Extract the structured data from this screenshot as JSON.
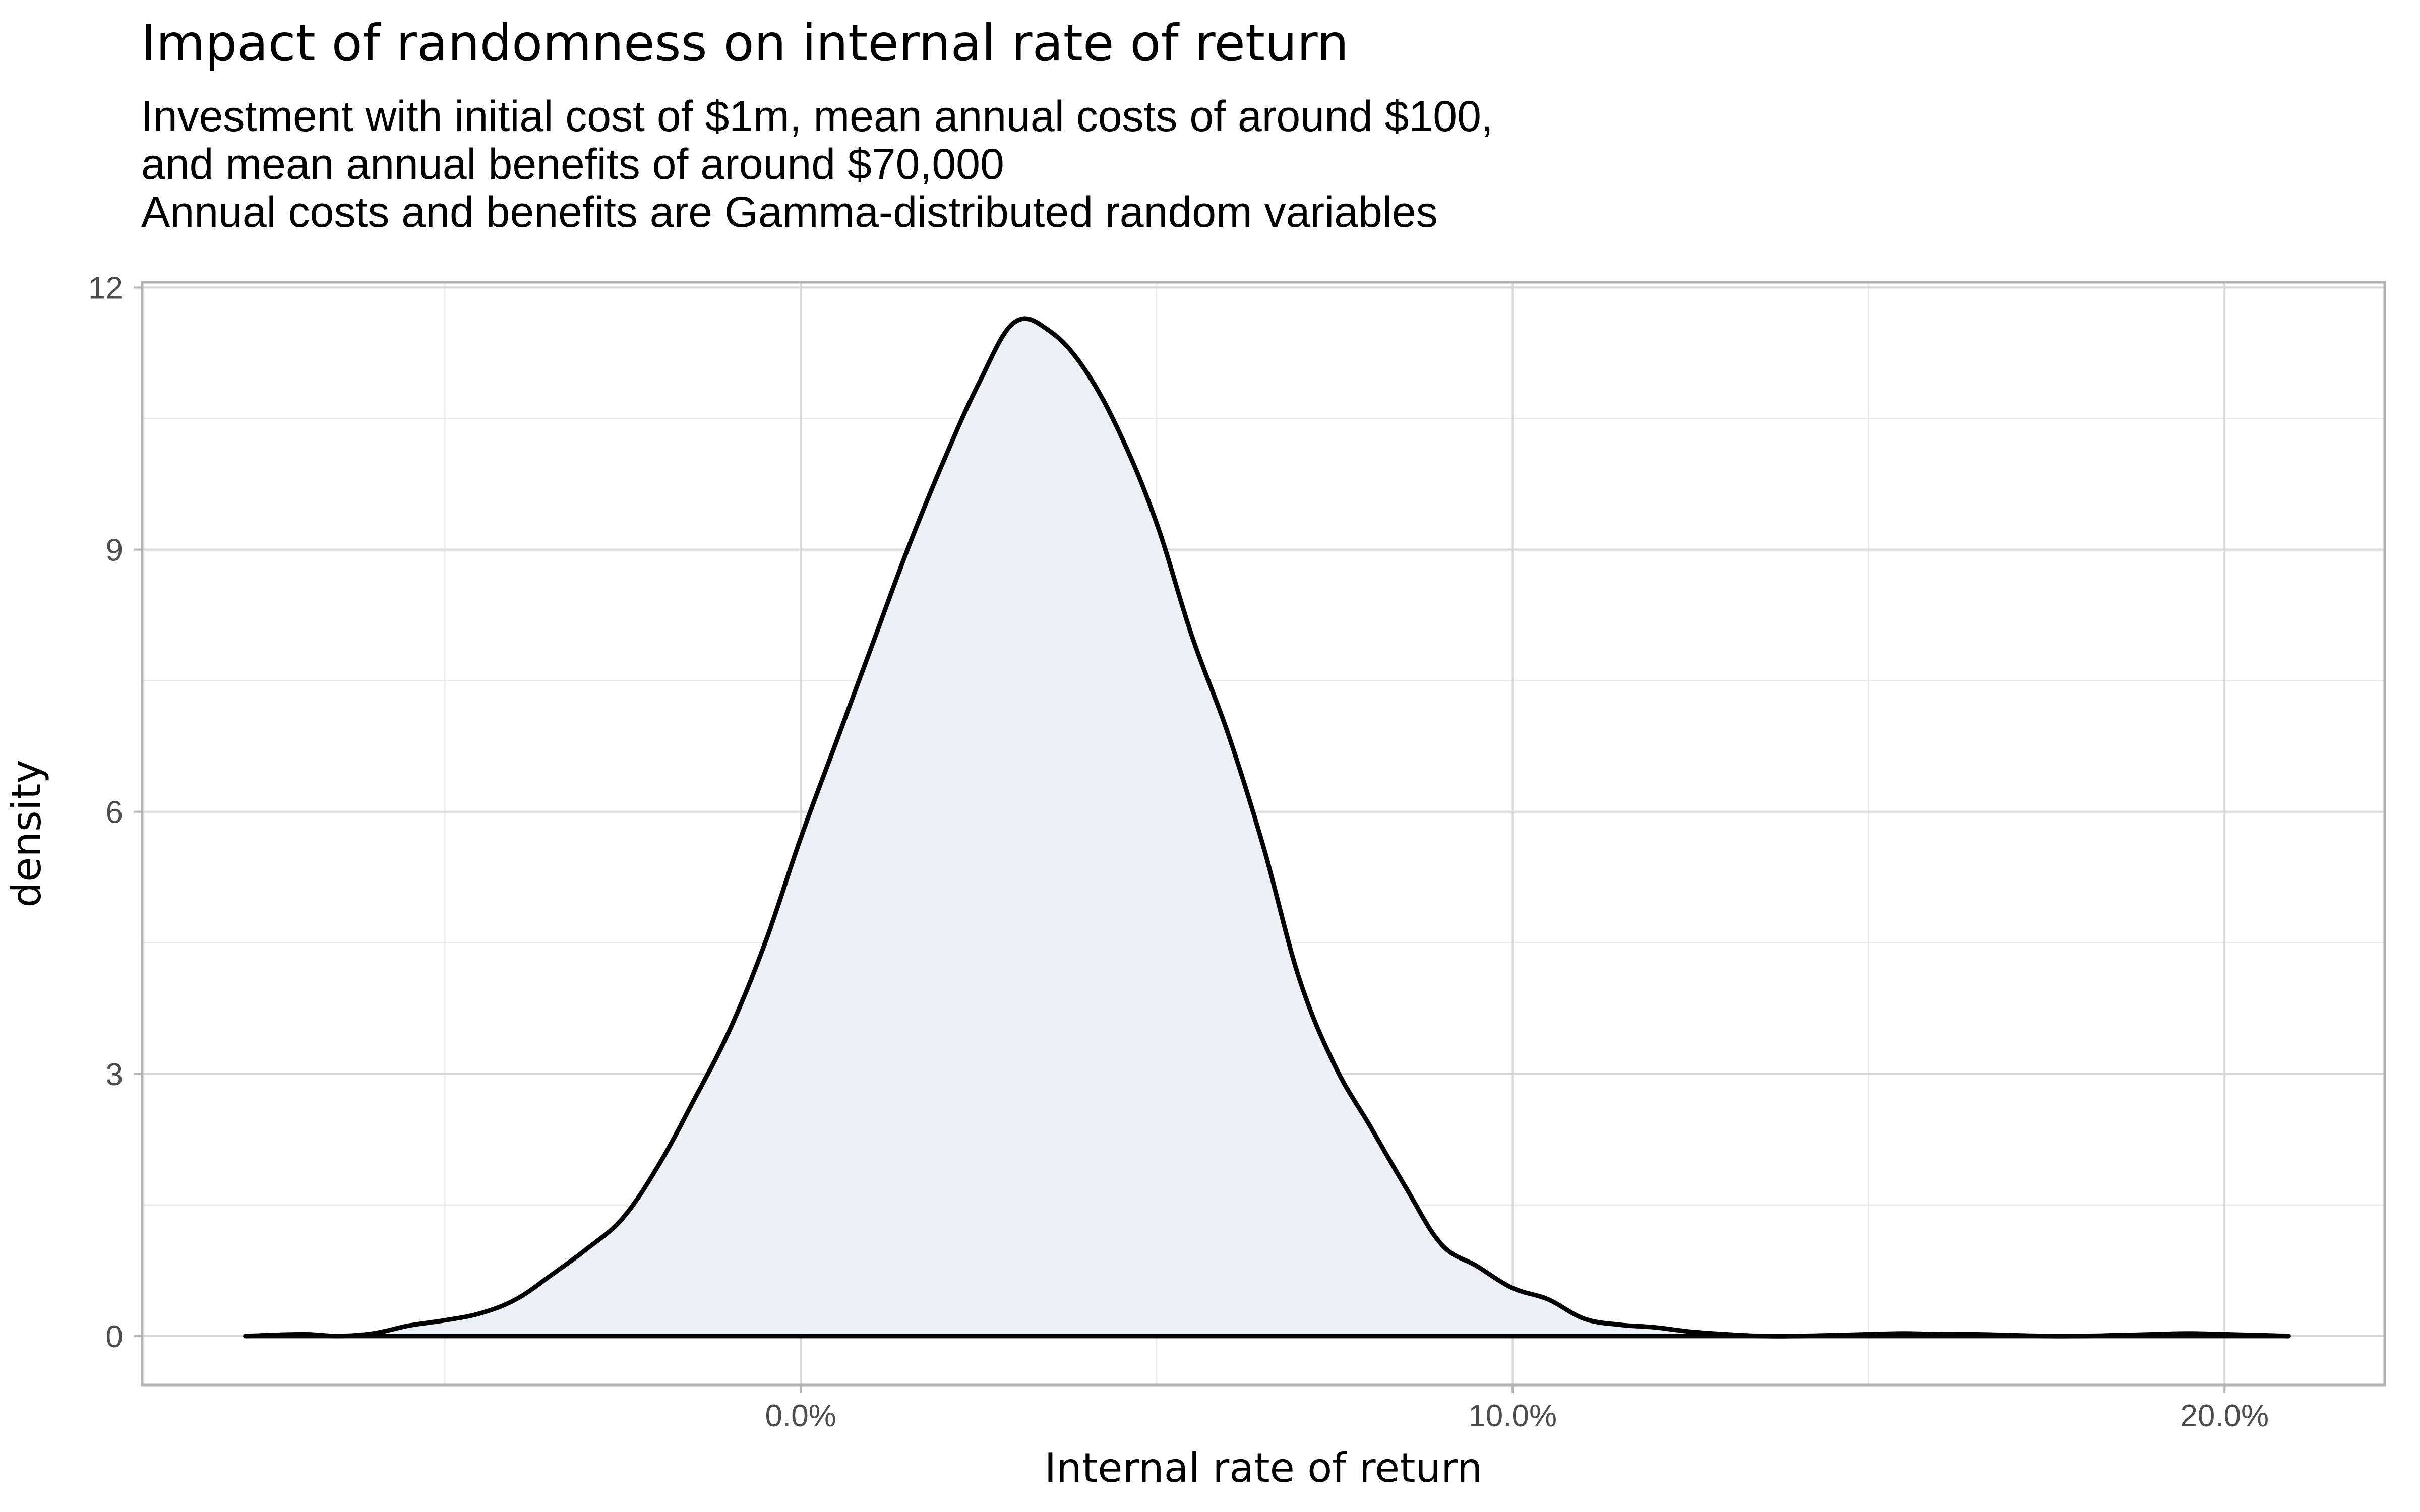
{
  "chart_data": {
    "type": "area",
    "title": "Impact of randomness on internal rate of return",
    "subtitle_lines": [
      "Investment with initial cost of $1m, mean annual costs of around $100,",
      "and mean annual benefits of around $70,000",
      "Annual costs and benefits are Gamma-distributed random variables"
    ],
    "xlabel": "Internal rate of return",
    "ylabel": "density",
    "xlim": [
      -0.0925,
      0.2225
    ],
    "ylim": [
      -0.56,
      12.06
    ],
    "x_major_ticks": [
      0.0,
      0.1,
      0.2
    ],
    "x_tick_labels": [
      "0.0%",
      "10.0%",
      "20.0%"
    ],
    "x_minor_ticks": [
      -0.05,
      0.05,
      0.15
    ],
    "y_major_ticks": [
      0,
      3,
      6,
      9,
      12
    ],
    "y_tick_labels": [
      "0",
      "3",
      "6",
      "9",
      "12"
    ],
    "y_minor_ticks": [
      1.5,
      4.5,
      7.5,
      10.5
    ],
    "grid": true,
    "fill_color": "#ebf0f7",
    "line_color": "#000000",
    "series": [
      {
        "name": "density",
        "x": [
          -0.078,
          -0.07,
          -0.065,
          -0.06,
          -0.055,
          -0.05,
          -0.045,
          -0.04,
          -0.035,
          -0.03,
          -0.025,
          -0.02,
          -0.015,
          -0.01,
          -0.005,
          0.0,
          0.005,
          0.01,
          0.015,
          0.02,
          0.025,
          0.03,
          0.035,
          0.04,
          0.045,
          0.05,
          0.055,
          0.06,
          0.065,
          0.07,
          0.075,
          0.08,
          0.085,
          0.09,
          0.095,
          0.1,
          0.105,
          0.11,
          0.115,
          0.12,
          0.125,
          0.13,
          0.135,
          0.14,
          0.145,
          0.15,
          0.155,
          0.16,
          0.165,
          0.17,
          0.175,
          0.18,
          0.185,
          0.19,
          0.195,
          0.2,
          0.205,
          0.209
        ],
        "y": [
          0.0,
          0.02,
          0.0,
          0.03,
          0.12,
          0.18,
          0.26,
          0.42,
          0.7,
          1.0,
          1.35,
          1.95,
          2.7,
          3.5,
          4.5,
          5.7,
          6.8,
          7.9,
          9.0,
          10.0,
          10.9,
          11.6,
          11.5,
          11.05,
          10.3,
          9.3,
          8.0,
          6.9,
          5.6,
          4.1,
          3.1,
          2.4,
          1.7,
          1.05,
          0.8,
          0.55,
          0.42,
          0.2,
          0.13,
          0.1,
          0.05,
          0.02,
          0.0,
          0.0,
          0.01,
          0.02,
          0.03,
          0.02,
          0.02,
          0.01,
          0.0,
          0.0,
          0.01,
          0.02,
          0.03,
          0.02,
          0.01,
          0.0
        ]
      }
    ]
  }
}
